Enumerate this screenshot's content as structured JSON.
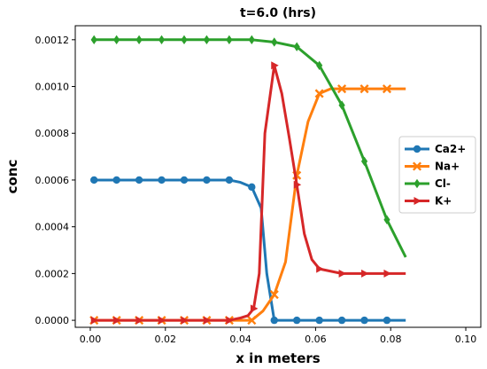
{
  "chart_data": {
    "type": "line",
    "title": "t=6.0 (hrs)",
    "xlabel": "x in meters",
    "ylabel": "conc",
    "xlim": [
      -0.004,
      0.104
    ],
    "ylim": [
      -3e-05,
      0.00126
    ],
    "xticks": [
      0.0,
      0.02,
      0.04,
      0.06,
      0.08,
      0.1
    ],
    "xtick_labels": [
      "0.00",
      "0.02",
      "0.04",
      "0.06",
      "0.08",
      "0.10"
    ],
    "yticks": [
      0.0,
      0.0002,
      0.0004,
      0.0006,
      0.0008,
      0.001,
      0.0012
    ],
    "ytick_labels": [
      "0.0000",
      "0.0002",
      "0.0004",
      "0.0006",
      "0.0008",
      "0.0010",
      "0.0012"
    ],
    "grid": false,
    "legend_position": "center-right",
    "series": [
      {
        "name": "Ca2+",
        "color": "#1f77b4",
        "marker": "circle",
        "x": [
          0.001,
          0.007,
          0.013,
          0.019,
          0.025,
          0.031,
          0.037,
          0.04,
          0.043,
          0.0455,
          0.047,
          0.049,
          0.055,
          0.061,
          0.067,
          0.073,
          0.079,
          0.084
        ],
        "y": [
          0.0006,
          0.0006,
          0.0006,
          0.0006,
          0.0006,
          0.0006,
          0.0006,
          0.00059,
          0.00057,
          0.00048,
          0.0002,
          0.0,
          0.0,
          0.0,
          0.0,
          0.0,
          0.0,
          0.0
        ],
        "marker_every": [
          0,
          1,
          2,
          3,
          4,
          5,
          6,
          8,
          11,
          12,
          13,
          14,
          15,
          16
        ]
      },
      {
        "name": "Na+",
        "color": "#ff7f0e",
        "marker": "x",
        "x": [
          0.001,
          0.007,
          0.013,
          0.019,
          0.025,
          0.031,
          0.037,
          0.043,
          0.046,
          0.049,
          0.052,
          0.055,
          0.058,
          0.061,
          0.064,
          0.067,
          0.073,
          0.079,
          0.084
        ],
        "y": [
          0.0,
          0.0,
          0.0,
          0.0,
          0.0,
          0.0,
          0.0,
          0.0,
          4e-05,
          0.00011,
          0.00025,
          0.00062,
          0.00085,
          0.00097,
          0.00099,
          0.00099,
          0.00099,
          0.00099,
          0.00099
        ],
        "marker_every": [
          0,
          1,
          2,
          3,
          4,
          5,
          6,
          7,
          9,
          11,
          13,
          15,
          16,
          17
        ]
      },
      {
        "name": "Cl-",
        "color": "#2ca02c",
        "marker": "diamond",
        "x": [
          0.001,
          0.007,
          0.013,
          0.019,
          0.025,
          0.031,
          0.037,
          0.043,
          0.049,
          0.055,
          0.061,
          0.067,
          0.073,
          0.079,
          0.084
        ],
        "y": [
          0.0012,
          0.0012,
          0.0012,
          0.0012,
          0.0012,
          0.0012,
          0.0012,
          0.0012,
          0.00119,
          0.00117,
          0.00109,
          0.00092,
          0.00068,
          0.00043,
          0.00027
        ],
        "marker_every": [
          0,
          1,
          2,
          3,
          4,
          5,
          6,
          7,
          8,
          9,
          10,
          11,
          12,
          13
        ]
      },
      {
        "name": "K+",
        "color": "#d62728",
        "marker": "triangle-right",
        "x": [
          0.001,
          0.007,
          0.013,
          0.019,
          0.025,
          0.031,
          0.037,
          0.04,
          0.042,
          0.0435,
          0.045,
          0.0465,
          0.049,
          0.051,
          0.053,
          0.055,
          0.057,
          0.059,
          0.061,
          0.064,
          0.067,
          0.073,
          0.079,
          0.084
        ],
        "y": [
          0.0,
          0.0,
          0.0,
          0.0,
          0.0,
          0.0,
          0.0,
          1e-05,
          2e-05,
          5e-05,
          0.0002,
          0.0008,
          0.00109,
          0.00097,
          0.00078,
          0.00058,
          0.00037,
          0.00026,
          0.00022,
          0.00021,
          0.0002,
          0.0002,
          0.0002,
          0.0002
        ],
        "marker_every": [
          0,
          1,
          2,
          3,
          4,
          5,
          6,
          9,
          12,
          15,
          18,
          20,
          21,
          22
        ]
      }
    ]
  }
}
